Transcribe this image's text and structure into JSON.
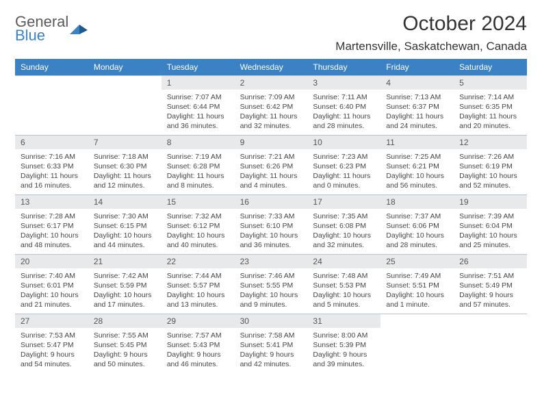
{
  "logo": {
    "word1": "General",
    "word2": "Blue"
  },
  "title": "October 2024",
  "location": "Martensville, Saskatchewan, Canada",
  "colors": {
    "header_bg": "#3b82c4",
    "header_text": "#ffffff",
    "daynum_bg": "#e7e9eb",
    "border": "#b8c4d0",
    "body_text": "#444444"
  },
  "dow": [
    "Sunday",
    "Monday",
    "Tuesday",
    "Wednesday",
    "Thursday",
    "Friday",
    "Saturday"
  ],
  "weeks": [
    [
      {
        "n": "",
        "s": "",
        "t": "",
        "d": ""
      },
      {
        "n": "",
        "s": "",
        "t": "",
        "d": ""
      },
      {
        "n": "1",
        "s": "Sunrise: 7:07 AM",
        "t": "Sunset: 6:44 PM",
        "d": "Daylight: 11 hours and 36 minutes."
      },
      {
        "n": "2",
        "s": "Sunrise: 7:09 AM",
        "t": "Sunset: 6:42 PM",
        "d": "Daylight: 11 hours and 32 minutes."
      },
      {
        "n": "3",
        "s": "Sunrise: 7:11 AM",
        "t": "Sunset: 6:40 PM",
        "d": "Daylight: 11 hours and 28 minutes."
      },
      {
        "n": "4",
        "s": "Sunrise: 7:13 AM",
        "t": "Sunset: 6:37 PM",
        "d": "Daylight: 11 hours and 24 minutes."
      },
      {
        "n": "5",
        "s": "Sunrise: 7:14 AM",
        "t": "Sunset: 6:35 PM",
        "d": "Daylight: 11 hours and 20 minutes."
      }
    ],
    [
      {
        "n": "6",
        "s": "Sunrise: 7:16 AM",
        "t": "Sunset: 6:33 PM",
        "d": "Daylight: 11 hours and 16 minutes."
      },
      {
        "n": "7",
        "s": "Sunrise: 7:18 AM",
        "t": "Sunset: 6:30 PM",
        "d": "Daylight: 11 hours and 12 minutes."
      },
      {
        "n": "8",
        "s": "Sunrise: 7:19 AM",
        "t": "Sunset: 6:28 PM",
        "d": "Daylight: 11 hours and 8 minutes."
      },
      {
        "n": "9",
        "s": "Sunrise: 7:21 AM",
        "t": "Sunset: 6:26 PM",
        "d": "Daylight: 11 hours and 4 minutes."
      },
      {
        "n": "10",
        "s": "Sunrise: 7:23 AM",
        "t": "Sunset: 6:23 PM",
        "d": "Daylight: 11 hours and 0 minutes."
      },
      {
        "n": "11",
        "s": "Sunrise: 7:25 AM",
        "t": "Sunset: 6:21 PM",
        "d": "Daylight: 10 hours and 56 minutes."
      },
      {
        "n": "12",
        "s": "Sunrise: 7:26 AM",
        "t": "Sunset: 6:19 PM",
        "d": "Daylight: 10 hours and 52 minutes."
      }
    ],
    [
      {
        "n": "13",
        "s": "Sunrise: 7:28 AM",
        "t": "Sunset: 6:17 PM",
        "d": "Daylight: 10 hours and 48 minutes."
      },
      {
        "n": "14",
        "s": "Sunrise: 7:30 AM",
        "t": "Sunset: 6:15 PM",
        "d": "Daylight: 10 hours and 44 minutes."
      },
      {
        "n": "15",
        "s": "Sunrise: 7:32 AM",
        "t": "Sunset: 6:12 PM",
        "d": "Daylight: 10 hours and 40 minutes."
      },
      {
        "n": "16",
        "s": "Sunrise: 7:33 AM",
        "t": "Sunset: 6:10 PM",
        "d": "Daylight: 10 hours and 36 minutes."
      },
      {
        "n": "17",
        "s": "Sunrise: 7:35 AM",
        "t": "Sunset: 6:08 PM",
        "d": "Daylight: 10 hours and 32 minutes."
      },
      {
        "n": "18",
        "s": "Sunrise: 7:37 AM",
        "t": "Sunset: 6:06 PM",
        "d": "Daylight: 10 hours and 28 minutes."
      },
      {
        "n": "19",
        "s": "Sunrise: 7:39 AM",
        "t": "Sunset: 6:04 PM",
        "d": "Daylight: 10 hours and 25 minutes."
      }
    ],
    [
      {
        "n": "20",
        "s": "Sunrise: 7:40 AM",
        "t": "Sunset: 6:01 PM",
        "d": "Daylight: 10 hours and 21 minutes."
      },
      {
        "n": "21",
        "s": "Sunrise: 7:42 AM",
        "t": "Sunset: 5:59 PM",
        "d": "Daylight: 10 hours and 17 minutes."
      },
      {
        "n": "22",
        "s": "Sunrise: 7:44 AM",
        "t": "Sunset: 5:57 PM",
        "d": "Daylight: 10 hours and 13 minutes."
      },
      {
        "n": "23",
        "s": "Sunrise: 7:46 AM",
        "t": "Sunset: 5:55 PM",
        "d": "Daylight: 10 hours and 9 minutes."
      },
      {
        "n": "24",
        "s": "Sunrise: 7:48 AM",
        "t": "Sunset: 5:53 PM",
        "d": "Daylight: 10 hours and 5 minutes."
      },
      {
        "n": "25",
        "s": "Sunrise: 7:49 AM",
        "t": "Sunset: 5:51 PM",
        "d": "Daylight: 10 hours and 1 minute."
      },
      {
        "n": "26",
        "s": "Sunrise: 7:51 AM",
        "t": "Sunset: 5:49 PM",
        "d": "Daylight: 9 hours and 57 minutes."
      }
    ],
    [
      {
        "n": "27",
        "s": "Sunrise: 7:53 AM",
        "t": "Sunset: 5:47 PM",
        "d": "Daylight: 9 hours and 54 minutes."
      },
      {
        "n": "28",
        "s": "Sunrise: 7:55 AM",
        "t": "Sunset: 5:45 PM",
        "d": "Daylight: 9 hours and 50 minutes."
      },
      {
        "n": "29",
        "s": "Sunrise: 7:57 AM",
        "t": "Sunset: 5:43 PM",
        "d": "Daylight: 9 hours and 46 minutes."
      },
      {
        "n": "30",
        "s": "Sunrise: 7:58 AM",
        "t": "Sunset: 5:41 PM",
        "d": "Daylight: 9 hours and 42 minutes."
      },
      {
        "n": "31",
        "s": "Sunrise: 8:00 AM",
        "t": "Sunset: 5:39 PM",
        "d": "Daylight: 9 hours and 39 minutes."
      },
      {
        "n": "",
        "s": "",
        "t": "",
        "d": ""
      },
      {
        "n": "",
        "s": "",
        "t": "",
        "d": ""
      }
    ]
  ]
}
